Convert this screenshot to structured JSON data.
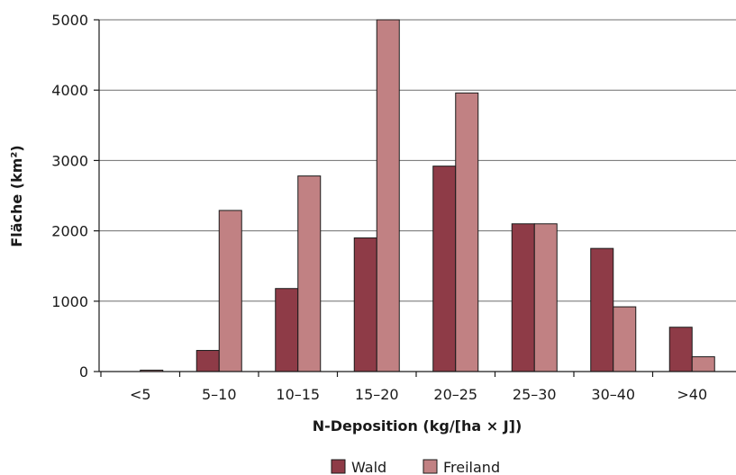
{
  "chart_data": {
    "type": "bar",
    "title": "",
    "xlabel": "N-Deposition (kg/[ha × J])",
    "ylabel": "Fläche (km²)",
    "categories": [
      "<5",
      "5–10",
      "10–15",
      "15–20",
      "20–25",
      "25–30",
      "30–40",
      ">40"
    ],
    "series": [
      {
        "name": "Wald",
        "color": "#8e3b47",
        "values": [
          0,
          300,
          1180,
          1900,
          2920,
          2100,
          1750,
          630
        ]
      },
      {
        "name": "Freiland",
        "color": "#c18183",
        "values": [
          20,
          2290,
          2780,
          5000,
          3960,
          2100,
          920,
          210
        ]
      }
    ],
    "ylim": [
      0,
      5000
    ],
    "yticks": [
      "0",
      "1000",
      "2000",
      "3000",
      "4000",
      "5000"
    ],
    "ytick_values": [
      0,
      1000,
      2000,
      3000,
      4000,
      5000
    ],
    "grid": true,
    "legend_position": "bottom-center"
  }
}
